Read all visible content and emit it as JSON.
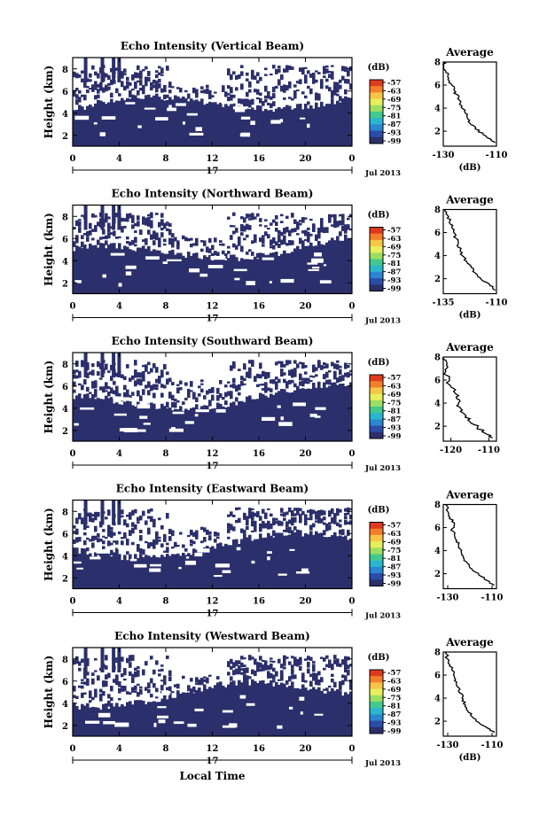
{
  "chart_data": [
    {
      "type": "heatmap",
      "title": "Echo Intensity (Vertical Beam)",
      "ylabel": "Height (km)",
      "x_ticks": [
        "0",
        "4",
        "8",
        "12",
        "16",
        "20",
        "0"
      ],
      "y_ticks": [
        "2",
        "4",
        "6",
        "8"
      ],
      "date_label": "17",
      "date_suffix": "Jul 2013",
      "colorbar_title": "(dB)",
      "colorbar_ticks": [
        "-57",
        "-63",
        "-69",
        "-75",
        "-81",
        "-87",
        "-93",
        "-99"
      ],
      "average": {
        "title": "Average",
        "xlabel": "(dB)",
        "x_ticks": [
          "-130",
          "-110"
        ],
        "xlim": [
          -130,
          -110
        ],
        "ylim": [
          0.7,
          8
        ],
        "profile": [
          [
            -110.5,
            1.0
          ],
          [
            -112,
            1.3
          ],
          [
            -115,
            1.7
          ],
          [
            -118,
            2.2
          ],
          [
            -120,
            2.7
          ],
          [
            -121,
            3.2
          ],
          [
            -122,
            3.7
          ],
          [
            -123,
            4.2
          ],
          [
            -124,
            4.7
          ],
          [
            -125,
            5.2
          ],
          [
            -126,
            5.6
          ],
          [
            -127,
            6.1
          ],
          [
            -128,
            6.6
          ],
          [
            -129,
            7.1
          ],
          [
            -129.8,
            7.6
          ],
          [
            -130,
            8.0
          ]
        ]
      }
    },
    {
      "type": "heatmap",
      "title": "Echo Intensity (Northward Beam)",
      "ylabel": "Height (km)",
      "x_ticks": [
        "0",
        "4",
        "8",
        "12",
        "16",
        "20",
        "0"
      ],
      "y_ticks": [
        "2",
        "4",
        "6",
        "8"
      ],
      "date_label": "17",
      "date_suffix": "Jul 2013",
      "colorbar_title": "(dB)",
      "colorbar_ticks": [
        "-57",
        "-63",
        "-69",
        "-75",
        "-81",
        "-87",
        "-93",
        "-99"
      ],
      "average": {
        "title": "Average",
        "xlabel": "(dB)",
        "x_ticks": [
          "-135",
          "-110"
        ],
        "xlim": [
          -135,
          -110
        ],
        "ylim": [
          0.7,
          8
        ],
        "profile": [
          [
            -110.5,
            1.0
          ],
          [
            -113,
            1.4
          ],
          [
            -117,
            1.9
          ],
          [
            -120,
            2.5
          ],
          [
            -122,
            3.0
          ],
          [
            -124,
            3.5
          ],
          [
            -126,
            4.0
          ],
          [
            -127,
            4.5
          ],
          [
            -128,
            5.0
          ],
          [
            -129,
            5.5
          ],
          [
            -130,
            6.0
          ],
          [
            -131,
            6.5
          ],
          [
            -132,
            7.0
          ],
          [
            -133,
            7.5
          ],
          [
            -134,
            8.0
          ]
        ]
      }
    },
    {
      "type": "heatmap",
      "title": "Echo Intensity (Southward Beam)",
      "ylabel": "Height (km)",
      "x_ticks": [
        "0",
        "4",
        "8",
        "12",
        "16",
        "20",
        "0"
      ],
      "y_ticks": [
        "2",
        "4",
        "6",
        "8"
      ],
      "date_label": "17",
      "date_suffix": "Jul 2013",
      "colorbar_title": "(dB)",
      "colorbar_ticks": [
        "-57",
        "-63",
        "-69",
        "-75",
        "-81",
        "-87",
        "-93",
        "-99"
      ],
      "average": {
        "title": "Average",
        "xlabel": "",
        "x_ticks": [
          "-120",
          "-110"
        ],
        "xlim": [
          -122,
          -108
        ],
        "ylim": [
          0.7,
          8
        ],
        "profile": [
          [
            -109,
            1.0
          ],
          [
            -111,
            1.4
          ],
          [
            -113,
            1.9
          ],
          [
            -115,
            2.4
          ],
          [
            -116,
            2.9
          ],
          [
            -117,
            3.4
          ],
          [
            -118,
            3.9
          ],
          [
            -118.5,
            4.4
          ],
          [
            -119,
            4.9
          ],
          [
            -120,
            5.4
          ],
          [
            -120.5,
            5.9
          ],
          [
            -121,
            6.4
          ],
          [
            -121.5,
            6.9
          ],
          [
            -121,
            7.4
          ],
          [
            -121.8,
            8.0
          ]
        ]
      }
    },
    {
      "type": "heatmap",
      "title": "Echo Intensity (Eastward Beam)",
      "ylabel": "Height (km)",
      "x_ticks": [
        "0",
        "4",
        "8",
        "12",
        "16",
        "20",
        "0"
      ],
      "y_ticks": [
        "2",
        "4",
        "6",
        "8"
      ],
      "date_label": "17",
      "date_suffix": "Jul 2013",
      "colorbar_title": "(dB)",
      "colorbar_ticks": [
        "-57",
        "-63",
        "-69",
        "-75",
        "-81",
        "-87",
        "-93",
        "-99"
      ],
      "average": {
        "title": "Average",
        "xlabel": "",
        "x_ticks": [
          "-130",
          "-110"
        ],
        "xlim": [
          -132,
          -108
        ],
        "ylim": [
          0.7,
          8
        ],
        "profile": [
          [
            -109,
            1.0
          ],
          [
            -112,
            1.4
          ],
          [
            -116,
            1.9
          ],
          [
            -119,
            2.4
          ],
          [
            -121,
            2.9
          ],
          [
            -123,
            3.4
          ],
          [
            -124,
            3.9
          ],
          [
            -125,
            4.4
          ],
          [
            -126,
            4.9
          ],
          [
            -127,
            5.4
          ],
          [
            -128,
            5.9
          ],
          [
            -127,
            6.4
          ],
          [
            -129,
            6.9
          ],
          [
            -130,
            7.4
          ],
          [
            -131,
            8.0
          ]
        ]
      }
    },
    {
      "type": "heatmap",
      "title": "Echo Intensity (Westward Beam)",
      "ylabel": "Height (km)",
      "xlabel": "Local Time",
      "x_ticks": [
        "0",
        "4",
        "8",
        "12",
        "16",
        "20",
        "0"
      ],
      "y_ticks": [
        "2",
        "4",
        "6",
        "8"
      ],
      "date_label": "17",
      "date_suffix": "Jul 2013",
      "colorbar_title": "(dB)",
      "colorbar_ticks": [
        "-57",
        "-63",
        "-69",
        "-75",
        "-81",
        "-87",
        "-93",
        "-99"
      ],
      "average": {
        "title": "Average",
        "xlabel": "(dB)",
        "x_ticks": [
          "-130",
          "-110"
        ],
        "xlim": [
          -132,
          -108
        ],
        "ylim": [
          0.7,
          8
        ],
        "profile": [
          [
            -109,
            1.0
          ],
          [
            -112,
            1.4
          ],
          [
            -116,
            1.9
          ],
          [
            -119,
            2.4
          ],
          [
            -121,
            2.9
          ],
          [
            -122,
            3.4
          ],
          [
            -123,
            3.9
          ],
          [
            -124,
            4.4
          ],
          [
            -125,
            4.9
          ],
          [
            -126,
            5.4
          ],
          [
            -127,
            5.9
          ],
          [
            -128,
            6.4
          ],
          [
            -129,
            6.9
          ],
          [
            -130,
            7.4
          ],
          [
            -131,
            8.0
          ]
        ]
      }
    }
  ],
  "colors": {
    "fill": "#2b2f6b",
    "colorbar": [
      "#e03a1e",
      "#f47f2a",
      "#f7c646",
      "#e8ef5a",
      "#9adf62",
      "#42c98f",
      "#29b7cf",
      "#2b86d2",
      "#2a4ea8",
      "#2b2f6b"
    ]
  }
}
